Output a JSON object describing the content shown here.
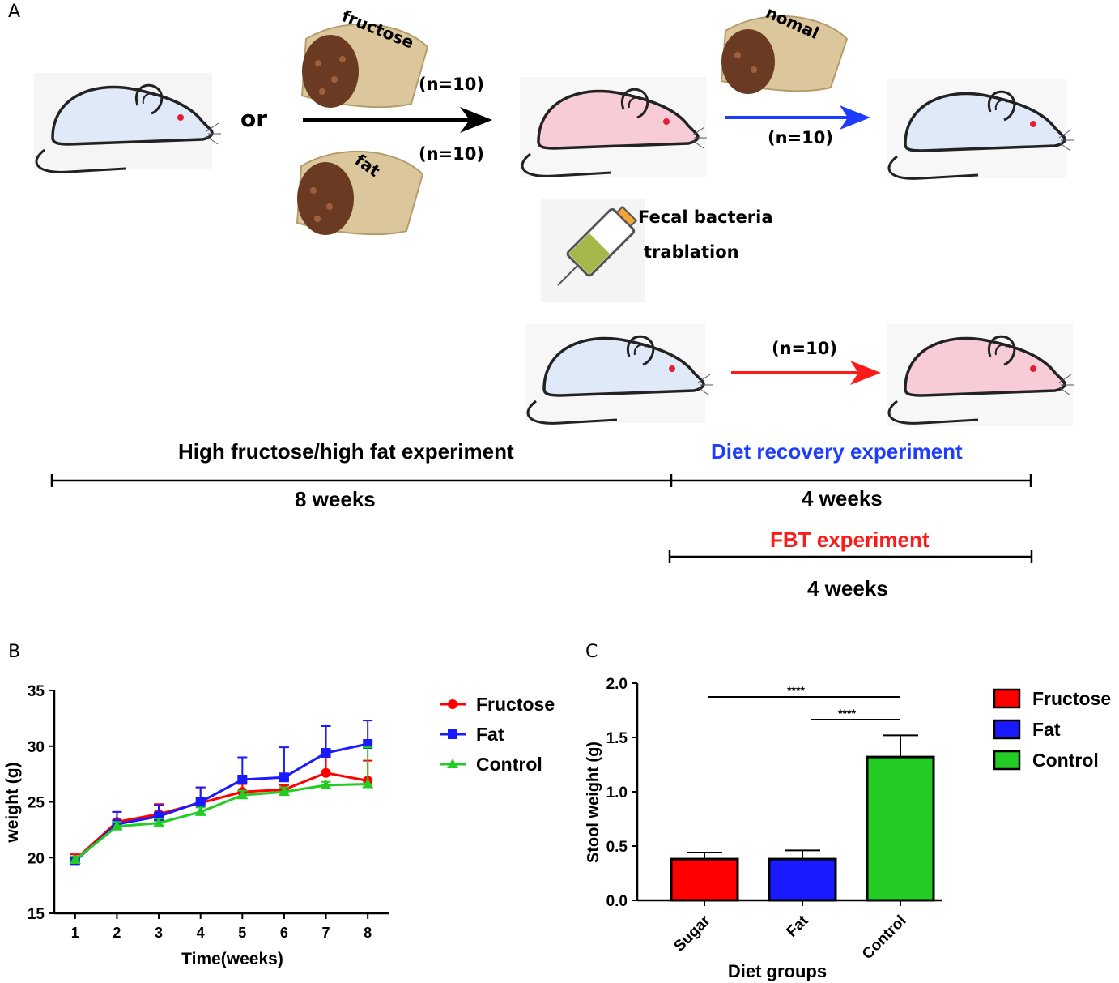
{
  "colors": {
    "fructose": "#ff0000",
    "fat": "#1a1aff",
    "control": "#22cc22",
    "mouse_normal_fill": "#dfe9f7",
    "mouse_sick_fill": "#f8ccd6",
    "bag": "#dcc79c",
    "arrow_black": "#000000",
    "arrow_blue": "#1e3cff",
    "arrow_red": "#ff1a1a"
  },
  "panel_a": {
    "letter": "A",
    "or_text": "or",
    "bag_fructose": "fructose",
    "bag_fat": "fat",
    "bag_normal": "nomal",
    "n_fructose": "(n=10)",
    "n_fat": "(n=10)",
    "n_recovery": "(n=10)",
    "n_fbt": "(n=10)",
    "fbt_line1": "Fecal bacteria",
    "fbt_line2": "trablation",
    "exp_highfat": "High fructose/high fat experiment",
    "exp_recovery": "Diet recovery experiment",
    "weeks_8": "8 weeks",
    "weeks_4a": "4 weeks",
    "exp_fbt": "FBT experiment",
    "weeks_4b": "4 weeks",
    "icons": [
      "mouse-icon",
      "food-bag-icon",
      "syringe-icon"
    ]
  },
  "panel_b": {
    "letter": "B"
  },
  "panel_c": {
    "letter": "C"
  },
  "chart_data": [
    {
      "type": "line",
      "title": "",
      "xlabel": "Time(weeks)",
      "ylabel": "weight (g)",
      "x": [
        1,
        2,
        3,
        4,
        5,
        6,
        7,
        8
      ],
      "xlim": [
        0.5,
        8.5
      ],
      "ylim": [
        15,
        35
      ],
      "yticks": [
        15,
        20,
        25,
        30,
        35
      ],
      "xticks": [
        "1",
        "2",
        "3",
        "4",
        "5",
        "6",
        "7",
        "8"
      ],
      "legend": "top-right",
      "series": [
        {
          "name": "Fructose",
          "color": "#ff0000",
          "marker": "circle",
          "values": [
            19.8,
            23.2,
            23.9,
            24.9,
            25.9,
            26.1,
            27.6,
            26.9
          ],
          "errors": [
            0.5,
            0.9,
            0.9,
            1.4,
            0.7,
            0.4,
            1.5,
            1.8
          ]
        },
        {
          "name": "Fat",
          "color": "#1a1aff",
          "marker": "square",
          "values": [
            19.7,
            23.0,
            23.7,
            25.0,
            27.0,
            27.2,
            29.4,
            30.2
          ],
          "errors": [
            0.4,
            1.1,
            1.0,
            1.3,
            2.0,
            2.7,
            2.4,
            2.1
          ]
        },
        {
          "name": "Control",
          "color": "#22cc22",
          "marker": "triangle",
          "values": [
            19.8,
            22.8,
            23.1,
            24.1,
            25.6,
            25.9,
            26.5,
            26.6
          ],
          "errors": [
            0.3,
            0.4,
            0.4,
            0.4,
            0.4,
            0.4,
            0.3,
            3.3
          ]
        }
      ]
    },
    {
      "type": "bar",
      "title": "",
      "xlabel": "Diet groups",
      "ylabel": "Stool weight (g)",
      "categories": [
        "Sugar",
        "Fat",
        "Control"
      ],
      "values": [
        0.38,
        0.38,
        1.32
      ],
      "errors": [
        0.06,
        0.08,
        0.2
      ],
      "colors": [
        "#ff0000",
        "#1a1aff",
        "#22cc22"
      ],
      "ylim": [
        0,
        2.0
      ],
      "yticks": [
        "0.0",
        "0.5",
        "1.0",
        "1.5",
        "2.0"
      ],
      "legend": "top-right",
      "legend_entries": [
        "Fructose",
        "Fat",
        "Control"
      ],
      "significance": [
        {
          "from": "Sugar",
          "to": "Control",
          "label": "****"
        },
        {
          "from": "Fat",
          "to": "Control",
          "label": "****"
        }
      ]
    }
  ]
}
